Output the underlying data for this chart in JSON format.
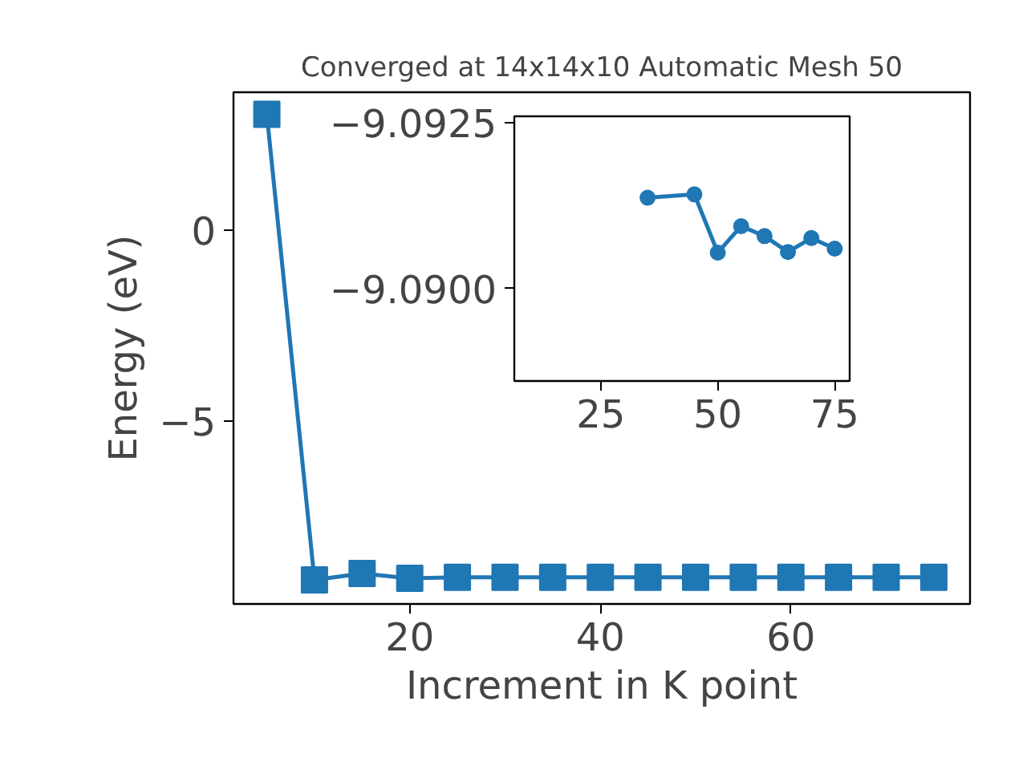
{
  "chart_data": [
    {
      "type": "line",
      "title": "Converged at 14x14x10 Automatic Mesh 50",
      "xlabel": "Increment in K point",
      "ylabel": "Energy (eV)",
      "marker": "square",
      "line_style": "solid",
      "grid": false,
      "x": [
        5,
        10,
        15,
        20,
        25,
        30,
        35,
        40,
        45,
        50,
        55,
        60,
        65,
        70,
        75
      ],
      "series": [
        {
          "color": "#1f77b4",
          "values": [
            3.03,
            -9.16,
            -8.99,
            -9.12,
            -9.09,
            -9.09,
            -9.09,
            -9.09,
            -9.09,
            -9.09,
            -9.09,
            -9.09,
            -9.09,
            -9.09,
            -9.09
          ]
        }
      ],
      "xlim": [
        1.5,
        78.8
      ],
      "ylim": [
        -9.79,
        3.61
      ],
      "xticks": [
        20,
        40,
        60
      ],
      "yticks": [
        -5,
        0
      ]
    },
    {
      "type": "line",
      "marker": "circle",
      "line_style": "solid",
      "grid": false,
      "x": [
        35,
        45,
        50,
        55,
        60,
        65,
        70,
        75
      ],
      "series": [
        {
          "color": "#1f77b4",
          "values": [
            -9.09137,
            -9.09142,
            -9.09054,
            -9.09094,
            -9.09079,
            -9.09055,
            -9.09076,
            -9.0906
          ]
        }
      ],
      "xlim": [
        6.5,
        78.2
      ],
      "ylim": [
        -9.0886,
        -9.0926
      ],
      "xticks": [
        25,
        50,
        75
      ],
      "yticks": [
        {
          "value": -9.0925,
          "label": "−9.0925"
        },
        {
          "value": -9.09,
          "label": "−9.0900"
        }
      ]
    }
  ]
}
